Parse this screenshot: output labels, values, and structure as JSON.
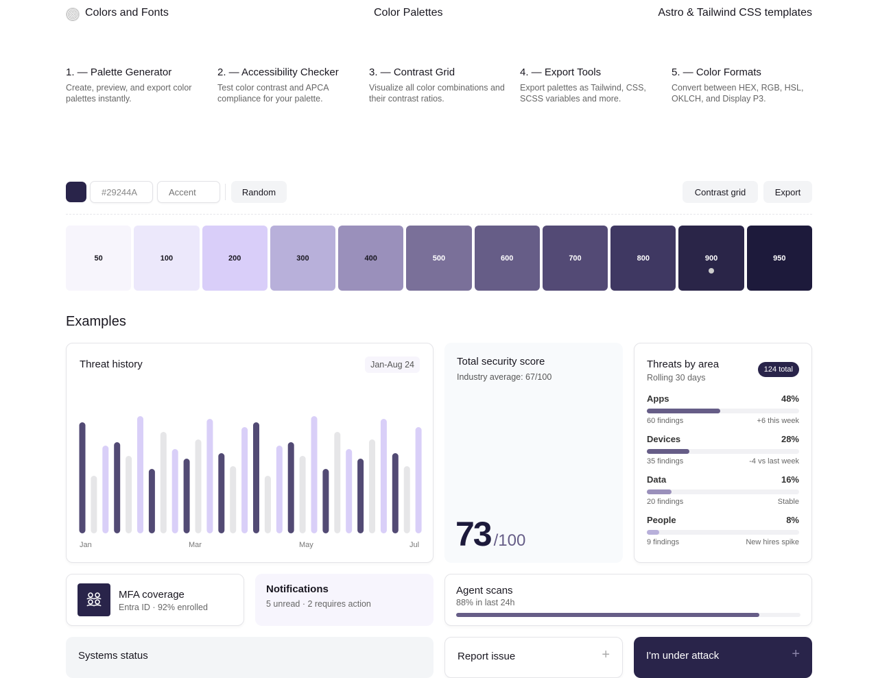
{
  "header": {
    "brand": "Colors and Fonts",
    "center": "Color Palettes",
    "right": "Astro & Tailwind CSS templates"
  },
  "features": [
    {
      "title": "1. — Palette Generator",
      "desc": "Create, preview, and export color palettes instantly."
    },
    {
      "title": "2. — Accessibility Checker",
      "desc": "Test color contrast and APCA compliance for your palette."
    },
    {
      "title": "3. — Contrast Grid",
      "desc": "Visualize all color combinations and their contrast ratios."
    },
    {
      "title": "4. — Export Tools",
      "desc": "Export palettes as Tailwind, CSS, SCSS variables and more."
    },
    {
      "title": "5. — Color Formats",
      "desc": "Convert between HEX, RGB, HSL, OKLCH, and Display P3."
    }
  ],
  "toolbar": {
    "base_color": "#29244A",
    "hex_value": "#29244A",
    "name_placeholder": "Accent",
    "random": "Random",
    "contrast_grid": "Contrast grid",
    "export": "Export"
  },
  "palette": [
    {
      "label": "50",
      "color": "#f7f5fc"
    },
    {
      "label": "100",
      "color": "#ece8fb"
    },
    {
      "label": "200",
      "color": "#d9cef9"
    },
    {
      "label": "300",
      "color": "#b8b0da"
    },
    {
      "label": "400",
      "color": "#9a90bb"
    },
    {
      "label": "500",
      "color": "#7a7099"
    },
    {
      "label": "600",
      "color": "#665d87"
    },
    {
      "label": "700",
      "color": "#534a75"
    },
    {
      "label": "800",
      "color": "#3f3862"
    },
    {
      "label": "900",
      "color": "#2a2548",
      "selected": true
    },
    {
      "label": "950",
      "color": "#1d1a3b"
    }
  ],
  "examples_title": "Examples",
  "threat_history": {
    "title": "Threat history",
    "range": "Jan-Aug 24"
  },
  "chart_data": {
    "type": "bar",
    "title": "Threat history",
    "x_ticks": [
      "Jan",
      "Mar",
      "May",
      "Jul"
    ],
    "values": [
      162,
      84,
      128,
      133,
      113,
      171,
      94,
      148,
      123,
      109,
      137,
      167,
      117,
      98,
      155,
      162,
      84,
      128,
      133,
      113,
      171,
      94,
      148,
      123,
      109,
      137,
      167,
      117,
      98,
      155
    ],
    "color_cycle": [
      "#524a74",
      "#e6e6e8",
      "#d9cff8"
    ],
    "grid": false
  },
  "score": {
    "title": "Total security score",
    "subtitle": "Industry average: 67/100",
    "value": "73",
    "max": "/100"
  },
  "threats": {
    "title": "Threats by area",
    "subtitle": "Rolling 30 days",
    "badge": "124 total",
    "items": [
      {
        "name": "Apps",
        "pct": "48%",
        "value": 48,
        "findings": "60 findings",
        "note": "+6 this week",
        "color": "#665d87"
      },
      {
        "name": "Devices",
        "pct": "28%",
        "value": 28,
        "findings": "35 findings",
        "note": "-4 vs last week",
        "color": "#665d87"
      },
      {
        "name": "Data",
        "pct": "16%",
        "value": 16,
        "findings": "20 findings",
        "note": "Stable",
        "color": "#9a90bb"
      },
      {
        "name": "People",
        "pct": "8%",
        "value": 8,
        "findings": "9 findings",
        "note": "New hires spike",
        "color": "#b8b0da"
      }
    ]
  },
  "mfa": {
    "title": "MFA coverage",
    "subtitle": "Entra ID · 92% enrolled"
  },
  "notifications": {
    "title": "Notifications",
    "subtitle": "5 unread · 2 requires action"
  },
  "agent": {
    "title": "Agent scans",
    "subtitle": "88% in last 24h",
    "value": 88
  },
  "systems": {
    "title": "Systems status"
  },
  "report": {
    "title": "Report issue"
  },
  "attack": {
    "title": "I'm under attack"
  }
}
